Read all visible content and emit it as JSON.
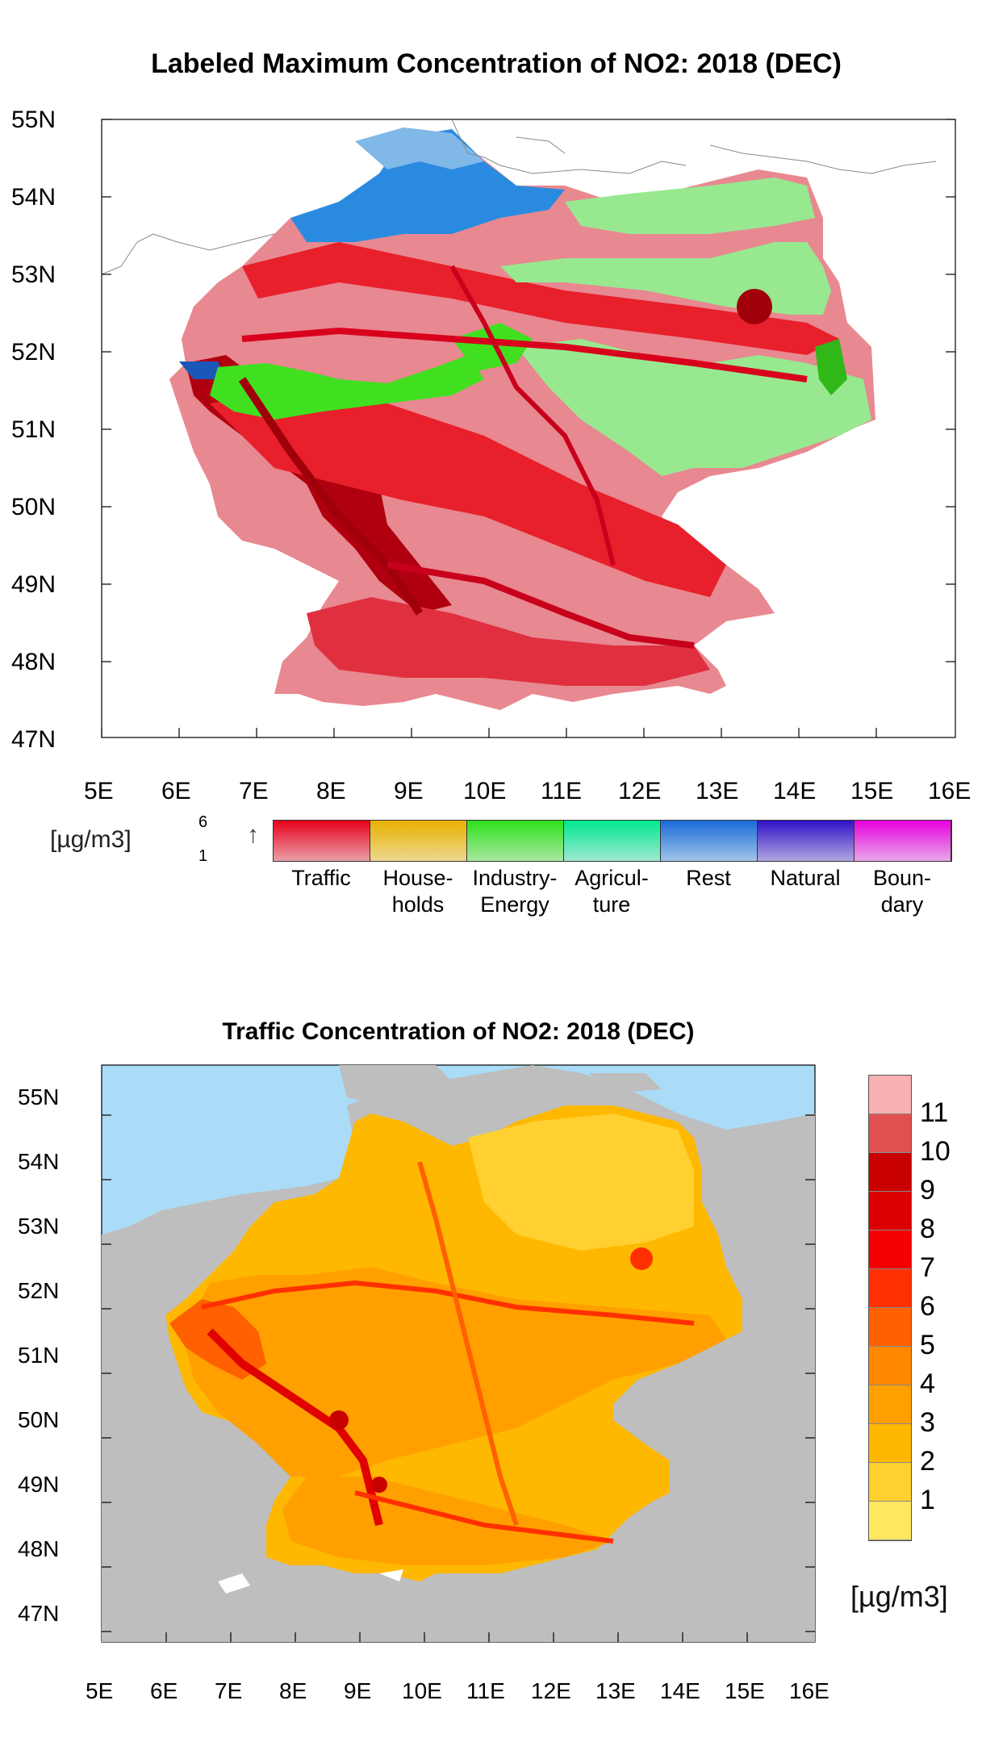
{
  "map1": {
    "title": "Labeled Maximum Concentration of NO2: 2018 (DEC)",
    "lat_ticks": [
      "55N",
      "54N",
      "53N",
      "52N",
      "51N",
      "50N",
      "49N",
      "48N",
      "47N"
    ],
    "lon_ticks": [
      "5E",
      "6E",
      "7E",
      "8E",
      "9E",
      "10E",
      "11E",
      "12E",
      "13E",
      "14E",
      "15E",
      "16E"
    ],
    "legend": {
      "unit": "[µg/m3]",
      "range_max": "6",
      "range_min": "1",
      "arrow": "↑",
      "categories": [
        {
          "label1": "Traffic",
          "label2": "",
          "color_dark": "#e8001c",
          "color_light": "#e8a0a8"
        },
        {
          "label1": "House-",
          "label2": "holds",
          "color_dark": "#e8b000",
          "color_light": "#eed890"
        },
        {
          "label1": "Industry-",
          "label2": "Energy",
          "color_dark": "#2ee01c",
          "color_light": "#a8e8a0"
        },
        {
          "label1": "Agricul-",
          "label2": "ture",
          "color_dark": "#00e890",
          "color_light": "#a0e8d0"
        },
        {
          "label1": "Rest",
          "label2": "",
          "color_dark": "#1a6ad8",
          "color_light": "#a0c4e8"
        },
        {
          "label1": "Natural",
          "label2": "",
          "color_dark": "#3010c8",
          "color_light": "#b0a8e0"
        },
        {
          "label1": "Boun-",
          "label2": "dary",
          "color_dark": "#e800e0",
          "color_light": "#e8a8e8"
        }
      ]
    }
  },
  "map2": {
    "title": "Traffic Concentration of NO2: 2018 (DEC)",
    "lat_ticks": [
      "55N",
      "54N",
      "53N",
      "52N",
      "51N",
      "50N",
      "49N",
      "48N",
      "47N"
    ],
    "lon_ticks": [
      "5E",
      "6E",
      "7E",
      "8E",
      "9E",
      "10E",
      "11E",
      "12E",
      "13E",
      "14E",
      "15E",
      "16E"
    ],
    "colorbar": {
      "unit": "[µg/m3]",
      "labels": [
        "11",
        "10",
        "9",
        "8",
        "7",
        "6",
        "5",
        "4",
        "3",
        "2",
        "1"
      ],
      "colors": [
        "#f8b0b0",
        "#e05050",
        "#c80000",
        "#dc0000",
        "#f40000",
        "#ff3000",
        "#ff6000",
        "#ff8800",
        "#ffa000",
        "#ffb800",
        "#ffd030",
        "#ffe860"
      ]
    },
    "colors": {
      "sea": "#aadcf8",
      "land_outside": "#bebebe"
    }
  },
  "colors": {
    "traffic_dark": "#a8000a",
    "traffic": "#e8202c",
    "traffic_light": "#e88890",
    "industry": "#40e020",
    "industry_light": "#98e890",
    "rest": "#2a8ae0",
    "rest_light": "#80b8e8"
  }
}
